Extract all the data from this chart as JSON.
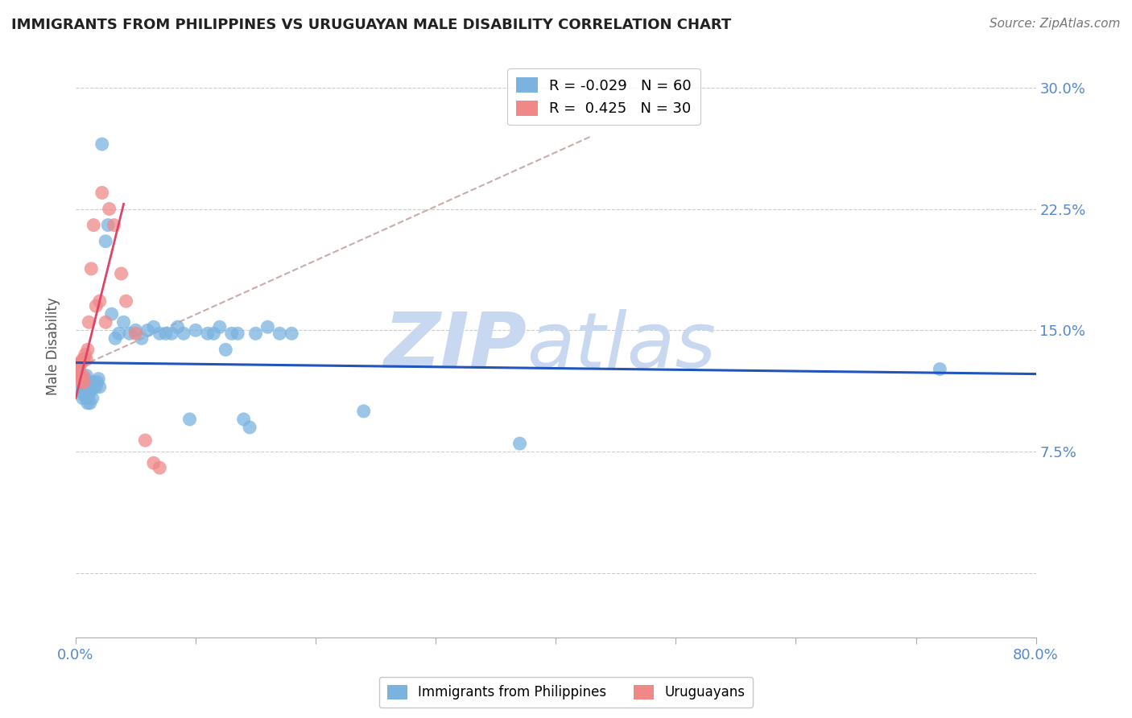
{
  "title": "IMMIGRANTS FROM PHILIPPINES VS URUGUAYAN MALE DISABILITY CORRELATION CHART",
  "source": "Source: ZipAtlas.com",
  "ylabel": "Male Disability",
  "xlim": [
    0.0,
    0.8
  ],
  "ylim": [
    -0.04,
    0.32
  ],
  "ytick_positions": [
    0.0,
    0.075,
    0.15,
    0.225,
    0.3
  ],
  "right_yticklabels": [
    "",
    "7.5%",
    "15.0%",
    "22.5%",
    "30.0%"
  ],
  "xtick_positions": [
    0.0,
    0.1,
    0.2,
    0.3,
    0.4,
    0.5,
    0.6,
    0.7,
    0.8
  ],
  "xticklabels": [
    "0.0%",
    "",
    "",
    "",
    "",
    "",
    "",
    "",
    "80.0%"
  ],
  "legend1_r": "-0.029",
  "legend1_n": "60",
  "legend2_r": "0.425",
  "legend2_n": "30",
  "blue_color": "#7ab3e0",
  "pink_color": "#f08888",
  "blue_line_color": "#2255bb",
  "pink_line_color": "#dd4466",
  "gray_dash_color": "#ccaaaa",
  "axis_label_color": "#5588cc",
  "title_color": "#222222",
  "watermark_zip_color": "#c8d8f0",
  "watermark_atlas_color": "#c8d8f0",
  "background_color": "#ffffff",
  "grid_color": "#cccccc",
  "blue_points_x": [
    0.003,
    0.004,
    0.005,
    0.005,
    0.006,
    0.006,
    0.007,
    0.007,
    0.008,
    0.008,
    0.009,
    0.009,
    0.01,
    0.01,
    0.011,
    0.011,
    0.012,
    0.012,
    0.013,
    0.014,
    0.015,
    0.016,
    0.017,
    0.018,
    0.019,
    0.02,
    0.022,
    0.025,
    0.027,
    0.03,
    0.033,
    0.036,
    0.04,
    0.045,
    0.05,
    0.055,
    0.06,
    0.065,
    0.07,
    0.075,
    0.08,
    0.085,
    0.09,
    0.095,
    0.1,
    0.11,
    0.115,
    0.12,
    0.125,
    0.13,
    0.135,
    0.14,
    0.145,
    0.15,
    0.16,
    0.17,
    0.18,
    0.24,
    0.37,
    0.72
  ],
  "blue_points_y": [
    0.127,
    0.118,
    0.12,
    0.112,
    0.115,
    0.108,
    0.118,
    0.11,
    0.12,
    0.113,
    0.122,
    0.108,
    0.115,
    0.105,
    0.118,
    0.11,
    0.112,
    0.105,
    0.115,
    0.108,
    0.115,
    0.118,
    0.115,
    0.118,
    0.12,
    0.115,
    0.265,
    0.205,
    0.215,
    0.16,
    0.145,
    0.148,
    0.155,
    0.148,
    0.15,
    0.145,
    0.15,
    0.152,
    0.148,
    0.148,
    0.148,
    0.152,
    0.148,
    0.095,
    0.15,
    0.148,
    0.148,
    0.152,
    0.138,
    0.148,
    0.148,
    0.095,
    0.09,
    0.148,
    0.152,
    0.148,
    0.148,
    0.1,
    0.08,
    0.126
  ],
  "pink_points_x": [
    0.001,
    0.002,
    0.003,
    0.003,
    0.004,
    0.004,
    0.005,
    0.005,
    0.006,
    0.006,
    0.007,
    0.007,
    0.008,
    0.009,
    0.01,
    0.011,
    0.013,
    0.015,
    0.017,
    0.02,
    0.022,
    0.025,
    0.028,
    0.032,
    0.038,
    0.042,
    0.05,
    0.058,
    0.065,
    0.07
  ],
  "pink_points_y": [
    0.128,
    0.125,
    0.128,
    0.122,
    0.13,
    0.122,
    0.13,
    0.118,
    0.132,
    0.122,
    0.132,
    0.118,
    0.135,
    0.132,
    0.138,
    0.155,
    0.188,
    0.215,
    0.165,
    0.168,
    0.235,
    0.155,
    0.225,
    0.215,
    0.185,
    0.168,
    0.148,
    0.082,
    0.068,
    0.065
  ],
  "blue_line_x": [
    0.0,
    0.8
  ],
  "blue_line_y": [
    0.13,
    0.123
  ],
  "pink_line_x": [
    0.0,
    0.04
  ],
  "pink_line_y": [
    0.108,
    0.228
  ],
  "gray_line_x": [
    0.005,
    0.43
  ],
  "gray_line_y": [
    0.128,
    0.27
  ]
}
